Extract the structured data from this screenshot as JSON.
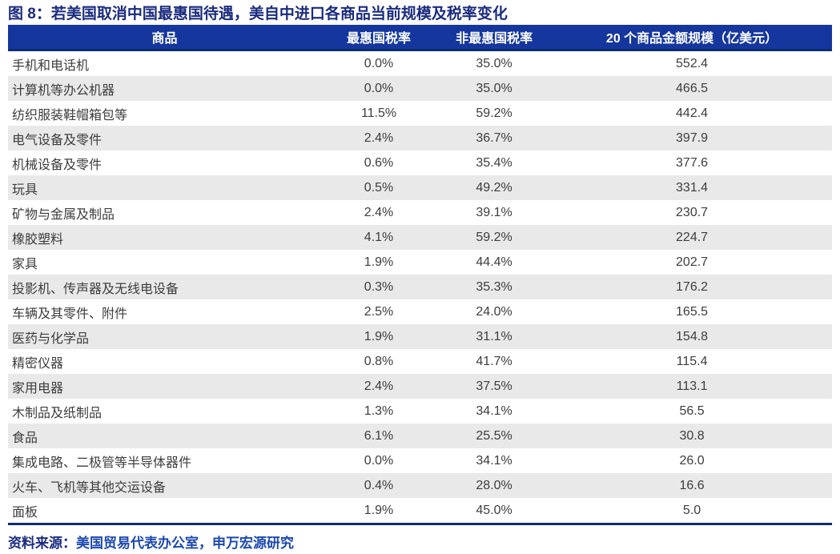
{
  "chart_data": {
    "type": "table",
    "title": "图 8：若美国取消中国最惠国待遇，美自中进口各商品当前规模及税率变化",
    "columns": [
      "商品",
      "最惠国税率",
      "非最惠国税率",
      "20 个商品金额规模（亿美元）"
    ],
    "rows": [
      [
        "手机和电话机",
        "0.0%",
        "35.0%",
        "552.4"
      ],
      [
        "计算机等办公机器",
        "0.0%",
        "35.0%",
        "466.5"
      ],
      [
        "纺织服装鞋帽箱包等",
        "11.5%",
        "59.2%",
        "442.4"
      ],
      [
        "电气设备及零件",
        "2.4%",
        "36.7%",
        "397.9"
      ],
      [
        "机械设备及零件",
        "0.6%",
        "35.4%",
        "377.6"
      ],
      [
        "玩具",
        "0.5%",
        "49.2%",
        "331.4"
      ],
      [
        "矿物与金属及制品",
        "2.4%",
        "39.1%",
        "230.7"
      ],
      [
        "橡胶塑料",
        "4.1%",
        "59.2%",
        "224.7"
      ],
      [
        "家具",
        "1.9%",
        "44.4%",
        "202.7"
      ],
      [
        "投影机、传声器及无线电设备",
        "0.3%",
        "35.3%",
        "176.2"
      ],
      [
        "车辆及其零件、附件",
        "2.5%",
        "24.0%",
        "165.5"
      ],
      [
        "医药与化学品",
        "1.9%",
        "31.1%",
        "154.8"
      ],
      [
        "精密仪器",
        "0.8%",
        "41.7%",
        "115.4"
      ],
      [
        "家用电器",
        "2.4%",
        "37.5%",
        "113.1"
      ],
      [
        "木制品及纸制品",
        "1.3%",
        "34.1%",
        "56.5"
      ],
      [
        "食品",
        "6.1%",
        "25.5%",
        "30.8"
      ],
      [
        "集成电路、二极管等半导体器件",
        "0.0%",
        "34.1%",
        "26.0"
      ],
      [
        "火车、飞机等其他交运设备",
        "0.4%",
        "28.0%",
        "16.6"
      ],
      [
        "面板",
        "1.9%",
        "45.0%",
        "5.0"
      ]
    ],
    "layout": {
      "stripe_rows": "even",
      "numeric_columns_alignment": "center",
      "product_column_alignment": "left"
    }
  },
  "footer": {
    "source_label": "资料来源：",
    "source_text": "美国贸易代表办公室，申万宏源研究"
  },
  "colors": {
    "title": "#1B2C7E",
    "header_bg": "#15379D",
    "header_text": "#FFFFFF",
    "header_border": "#0C2C74",
    "stripe": "#E9E9E9",
    "body_text": "#3D3D3D",
    "rule": "#122C6E",
    "source_label": "#1B2C7E",
    "source_text": "#1C48AE"
  }
}
